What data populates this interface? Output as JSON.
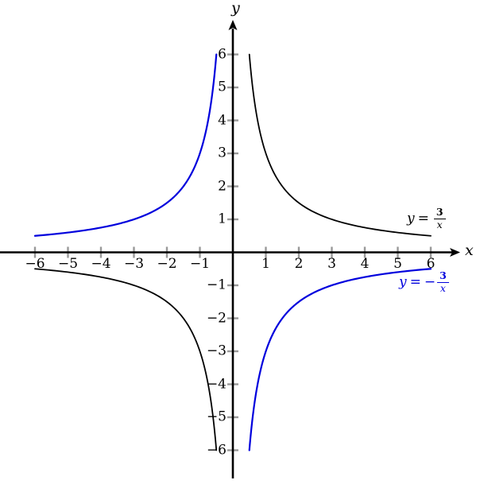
{
  "chart_data": {
    "type": "line",
    "title": "",
    "xlabel": "x",
    "ylabel": "y",
    "xlim": [
      -7.1,
      6.9
    ],
    "ylim": [
      -7.1,
      7.1
    ],
    "grid": false,
    "legend_position": "none",
    "axis_color": "#000000",
    "tick_color": "#999999",
    "x_ticks": [
      {
        "value": -6,
        "label": "−6"
      },
      {
        "value": -5,
        "label": "−5"
      },
      {
        "value": -4,
        "label": "−4"
      },
      {
        "value": -3,
        "label": "−3"
      },
      {
        "value": -2,
        "label": "−2"
      },
      {
        "value": -1,
        "label": "−1"
      },
      {
        "value": 1,
        "label": "1"
      },
      {
        "value": 2,
        "label": "2"
      },
      {
        "value": 3,
        "label": "3"
      },
      {
        "value": 4,
        "label": "4"
      },
      {
        "value": 5,
        "label": "5"
      },
      {
        "value": 6,
        "label": "6"
      }
    ],
    "y_ticks": [
      {
        "value": 6,
        "label": "6"
      },
      {
        "value": 5,
        "label": "5"
      },
      {
        "value": 4,
        "label": "4"
      },
      {
        "value": 3,
        "label": "3"
      },
      {
        "value": 2,
        "label": "2"
      },
      {
        "value": 1,
        "label": "1"
      },
      {
        "value": -1,
        "label": "−1"
      },
      {
        "value": -2,
        "label": "−2"
      },
      {
        "value": -3,
        "label": "−3"
      },
      {
        "value": -4,
        "label": "−4"
      },
      {
        "value": -5,
        "label": "−5"
      },
      {
        "value": -6,
        "label": "−6"
      }
    ],
    "series": [
      {
        "name": "y = 3/x",
        "expression": "y = 3/x",
        "coefficient": 3,
        "color": "#000000",
        "stroke_width": 1.8,
        "domain_branches": [
          [
            -6,
            -0.5
          ],
          [
            0.5,
            6
          ]
        ],
        "endpoints": [
          [
            -6,
            -0.5
          ],
          [
            -0.5,
            -6
          ],
          [
            0.5,
            6
          ],
          [
            6,
            0.5
          ]
        ],
        "label": {
          "variable": "y",
          "relation": "=",
          "sign": "",
          "numerator": "3",
          "denominator": "x"
        }
      },
      {
        "name": "y = −3/x",
        "expression": "y = −3/x",
        "coefficient": -3,
        "color": "#0000dd",
        "stroke_width": 2.2,
        "domain_branches": [
          [
            -6,
            -0.5
          ],
          [
            0.5,
            6
          ]
        ],
        "endpoints": [
          [
            -6,
            0.5
          ],
          [
            -0.5,
            6
          ],
          [
            0.5,
            -6
          ],
          [
            6,
            -0.5
          ]
        ],
        "label": {
          "variable": "y",
          "relation": "=",
          "sign": "−",
          "numerator": "3",
          "denominator": "x"
        }
      }
    ]
  }
}
